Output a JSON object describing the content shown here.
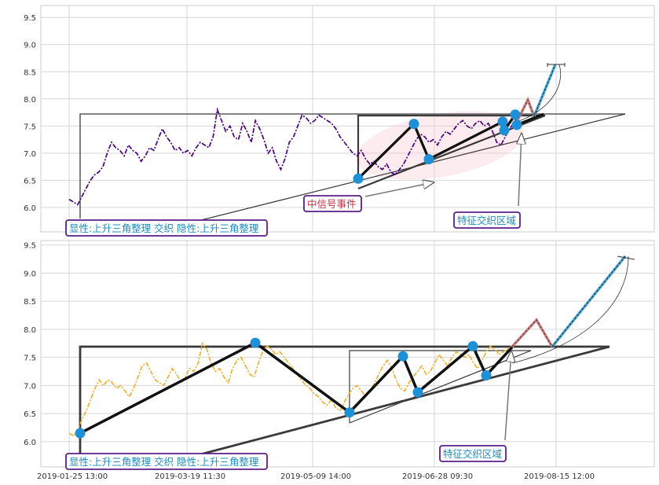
{
  "chart_data": [
    {
      "type": "line",
      "panel": "top",
      "ylim": [
        5.55,
        9.72
      ],
      "yticks": [
        "6.0",
        "6.5",
        "7.0",
        "7.5",
        "8.0",
        "8.5",
        "9.0",
        "9.5"
      ],
      "ytick_values": [
        6.0,
        6.5,
        7.0,
        7.5,
        8.0,
        8.5,
        9.0,
        9.5
      ],
      "grid": true,
      "series": [
        {
          "line_color": "#4b0082",
          "values": [
            6.15,
            6.1,
            6.05,
            6.2,
            6.35,
            6.5,
            6.6,
            6.65,
            6.75,
            7.0,
            7.2,
            7.1,
            7.05,
            6.95,
            7.15,
            7.05,
            7.0,
            6.85,
            6.95,
            7.1,
            7.05,
            7.25,
            7.45,
            7.3,
            7.2,
            7.05,
            7.1,
            7.0,
            7.05,
            6.95,
            7.1,
            7.2,
            7.15,
            7.1,
            7.3,
            7.8,
            7.6,
            7.4,
            7.5,
            7.3,
            7.25,
            7.55,
            7.4,
            7.2,
            7.6,
            7.45,
            7.25,
            7.0,
            7.1,
            6.85,
            6.7,
            6.9,
            7.2,
            7.3,
            7.5,
            7.7,
            7.65,
            7.55,
            7.6,
            7.7,
            7.65,
            7.6,
            7.55,
            7.45,
            7.3,
            7.2,
            7.1,
            7.0,
            6.95,
            7.05,
            6.9,
            6.8,
            6.85,
            6.75,
            6.7,
            6.8,
            6.65,
            6.6,
            6.7,
            6.8,
            6.95,
            7.1,
            7.25,
            7.35,
            7.3,
            7.2,
            7.25,
            7.15,
            7.3,
            7.4,
            7.35,
            7.45,
            7.55,
            7.6,
            7.5,
            7.45,
            7.55,
            7.6,
            7.5,
            7.55,
            7.4,
            7.2,
            7.15,
            7.3,
            7.45,
            7.55
          ]
        }
      ],
      "patterns": [
        {
          "kind": "black-zigzag",
          "points": [
            [
              456,
              6.53
            ],
            [
              527,
              7.54
            ],
            [
              546,
              6.89
            ],
            [
              640,
              7.58
            ],
            [
              642,
              7.42
            ],
            [
              656,
              7.71
            ],
            [
              658,
              7.52
            ],
            [
              692,
              7.72
            ]
          ]
        }
      ],
      "markers": [
        [
          456,
          6.53
        ],
        [
          527,
          7.54
        ],
        [
          546,
          6.89
        ],
        [
          640,
          7.58
        ],
        [
          642,
          7.42
        ],
        [
          656,
          7.71
        ],
        [
          658,
          7.52
        ]
      ],
      "annotations": [
        {
          "text": "显性:上升三角整理 交织 隐性:上升三角整理",
          "kind": "box-purple"
        },
        {
          "text": "中信号事件",
          "kind": "box-red"
        },
        {
          "text": "特征交织区域",
          "kind": "box-purple"
        }
      ]
    },
    {
      "type": "line",
      "panel": "bottom",
      "ylim": [
        5.55,
        9.58
      ],
      "yticks": [
        "6.0",
        "6.5",
        "7.0",
        "7.5",
        "8.0",
        "8.5",
        "9.0",
        "9.5"
      ],
      "ytick_values": [
        6.0,
        6.5,
        7.0,
        7.5,
        8.0,
        8.5,
        9.0,
        9.5
      ],
      "xtick_labels": [
        "2019-01-25 13:00",
        "2019-03-19 11:30",
        "2019-05-09 14:00",
        "2019-06-28 09:30",
        "2019-08-15 12:00"
      ],
      "grid": true,
      "series": [
        {
          "line_color": "#f0b030",
          "values": [
            6.15,
            6.1,
            6.2,
            6.4,
            6.55,
            6.75,
            6.95,
            7.1,
            7.0,
            7.1,
            7.05,
            6.95,
            7.0,
            6.9,
            6.8,
            6.95,
            7.15,
            7.35,
            7.4,
            7.25,
            7.1,
            7.05,
            7.0,
            7.15,
            7.3,
            7.2,
            7.05,
            7.15,
            7.3,
            7.25,
            7.4,
            7.75,
            7.65,
            7.4,
            7.25,
            7.3,
            7.15,
            7.05,
            7.3,
            7.45,
            7.5,
            7.35,
            7.2,
            7.15,
            7.4,
            7.6,
            7.7,
            7.65,
            7.55,
            7.6,
            7.5,
            7.4,
            7.3,
            7.2,
            7.1,
            7.0,
            6.95,
            6.85,
            6.8,
            6.7,
            6.65,
            6.75,
            6.6,
            6.55,
            6.7,
            6.85,
            6.95,
            7.0,
            6.9,
            6.8,
            6.9,
            7.05,
            7.2,
            7.35,
            7.45,
            7.3,
            7.1,
            6.95,
            6.9,
            7.05,
            7.15,
            7.25,
            7.35,
            7.2,
            7.25,
            7.4,
            7.55,
            7.45,
            7.35,
            7.5,
            7.6,
            7.55,
            7.5,
            7.55,
            7.4,
            7.3,
            7.45,
            7.6,
            7.7,
            7.65,
            7.55,
            7.6,
            7.65,
            7.7
          ]
        }
      ],
      "patterns": [
        {
          "kind": "black-zigzag",
          "points": [
            [
              102,
              6.15
            ],
            [
              325,
              7.76
            ],
            [
              445,
              6.52
            ],
            [
              513,
              7.52
            ],
            [
              532,
              6.88
            ],
            [
              602,
              7.7
            ],
            [
              619,
              7.18
            ],
            [
              652,
              7.68
            ]
          ]
        }
      ],
      "markers": [
        [
          102,
          6.15
        ],
        [
          325,
          7.76
        ],
        [
          445,
          6.52
        ],
        [
          513,
          7.52
        ],
        [
          532,
          6.88
        ],
        [
          602,
          7.7
        ],
        [
          619,
          7.18
        ]
      ],
      "annotations": [
        {
          "text": "显性:上升三角整理 交织 隐性:上升三角整理",
          "kind": "box-purple"
        },
        {
          "text": "特征交织区域",
          "kind": "box-purple"
        }
      ]
    }
  ]
}
